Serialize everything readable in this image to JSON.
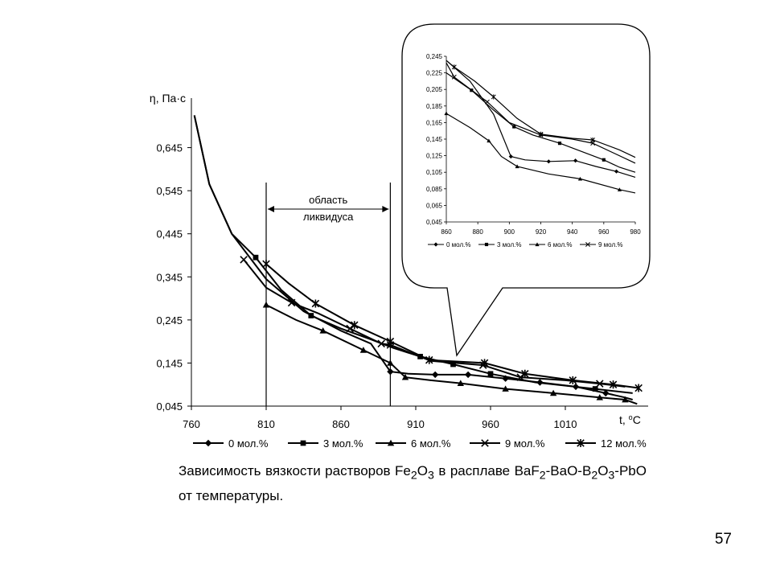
{
  "slide": {
    "page_number": "57"
  },
  "caption": {
    "t1": "Зависимость вязкости растворов Fe",
    "s1": "2",
    "t2": "O",
    "s2": "3",
    "t3": " в расплаве BaF",
    "s3": "2",
    "t4": "-BaO-B",
    "s4": "2",
    "t5": "O",
    "s5": "3",
    "t6": "-PbO от температуры."
  },
  "chart_data": [
    {
      "type": "line",
      "ylabel": "η, Па·с",
      "xlabel_main": "t, ",
      "xlabel_sup": "o",
      "xlabel_unit": "C",
      "ylim": [
        0.045,
        0.745
      ],
      "xlim": [
        760,
        1060
      ],
      "y_ticks": [
        "0,045",
        "0,145",
        "0,245",
        "0,345",
        "0,445",
        "0,545",
        "0,645"
      ],
      "x_ticks": [
        "760",
        "810",
        "860",
        "910",
        "960",
        "1010"
      ],
      "legend_position": "bottom",
      "annotation": {
        "text_line1": "область",
        "text_line2": "ликвидуса",
        "x_from": 810,
        "x_to": 893
      },
      "series": [
        {
          "name": "0 мол.%",
          "marker": "diamond",
          "marker_x": [
            893,
            923,
            945,
            970,
            993,
            1017,
            1037
          ],
          "x": [
            762,
            772,
            787,
            810,
            835,
            860,
            880,
            893,
            905,
            923,
            945,
            970,
            993,
            1017,
            1037,
            1050,
            1055
          ],
          "y": [
            0.72,
            0.56,
            0.445,
            0.34,
            0.265,
            0.22,
            0.19,
            0.125,
            0.12,
            0.118,
            0.118,
            0.109,
            0.1,
            0.09,
            0.075,
            0.065,
            0.06
          ]
        },
        {
          "name": "3 мол.%",
          "marker": "square",
          "marker_x": [
            803,
            840,
            913,
            935,
            960,
            1030
          ],
          "x": [
            762,
            772,
            787,
            803,
            820,
            840,
            860,
            880,
            895,
            913,
            935,
            960,
            990,
            1030,
            1055
          ],
          "y": [
            0.72,
            0.56,
            0.445,
            0.39,
            0.315,
            0.255,
            0.225,
            0.2,
            0.18,
            0.16,
            0.142,
            0.12,
            0.1,
            0.085,
            0.075
          ]
        },
        {
          "name": "6 мол.%",
          "marker": "triangle",
          "marker_x": [
            810,
            848,
            875,
            893,
            903,
            940,
            970,
            1002,
            1033,
            1050
          ],
          "x": [
            810,
            830,
            848,
            875,
            893,
            903,
            920,
            940,
            970,
            1002,
            1033,
            1050,
            1058
          ],
          "y": [
            0.28,
            0.245,
            0.22,
            0.175,
            0.145,
            0.112,
            0.105,
            0.098,
            0.085,
            0.075,
            0.065,
            0.06,
            0.05
          ]
        },
        {
          "name": "9 мол.%",
          "marker": "cross",
          "marker_x": [
            795,
            827,
            866,
            887,
            893,
            955,
            980,
            1033
          ],
          "x": [
            795,
            810,
            827,
            845,
            866,
            887,
            893,
            920,
            955,
            980,
            1010,
            1033,
            1050
          ],
          "y": [
            0.385,
            0.32,
            0.285,
            0.26,
            0.225,
            0.19,
            0.187,
            0.15,
            0.14,
            0.112,
            0.105,
            0.097,
            0.09
          ]
        },
        {
          "name": "12 мол.%",
          "marker": "asterisk",
          "marker_x": [
            810,
            843,
            869,
            893,
            919,
            956,
            983,
            1015,
            1042,
            1059
          ],
          "x": [
            810,
            825,
            843,
            869,
            893,
            919,
            956,
            983,
            1015,
            1042,
            1059
          ],
          "y": [
            0.375,
            0.33,
            0.283,
            0.233,
            0.195,
            0.152,
            0.145,
            0.12,
            0.105,
            0.095,
            0.087
          ]
        }
      ]
    },
    {
      "type": "line",
      "title": "",
      "ylim": [
        0.045,
        0.245
      ],
      "xlim": [
        860,
        980
      ],
      "y_ticks": [
        "0,045",
        "0,065",
        "0,085",
        "0,105",
        "0,125",
        "0,145",
        "0,165",
        "0,185",
        "0,205",
        "0,225",
        "0,245"
      ],
      "x_ticks": [
        "860",
        "880",
        "900",
        "920",
        "940",
        "960",
        "980"
      ],
      "legend_position": "bottom",
      "series": [
        {
          "name": "0 мол.%",
          "marker": "diamond",
          "marker_x": [
            901,
            925,
            942,
            968
          ],
          "x": [
            860,
            875,
            890,
            901,
            910,
            925,
            942,
            955,
            968,
            980
          ],
          "y": [
            0.24,
            0.215,
            0.175,
            0.124,
            0.12,
            0.118,
            0.119,
            0.112,
            0.106,
            0.099
          ]
        },
        {
          "name": "3 мол.%",
          "marker": "square",
          "marker_x": [
            876,
            903,
            932,
            960
          ],
          "x": [
            860,
            876,
            890,
            903,
            915,
            932,
            946,
            960,
            970,
            980
          ],
          "y": [
            0.225,
            0.204,
            0.18,
            0.16,
            0.15,
            0.14,
            0.13,
            0.12,
            0.111,
            0.105
          ]
        },
        {
          "name": "6 мол.%",
          "marker": "triangle",
          "marker_x": [
            860,
            887,
            905,
            945,
            970
          ],
          "x": [
            860,
            875,
            887,
            895,
            905,
            925,
            945,
            970,
            980
          ],
          "y": [
            0.176,
            0.159,
            0.143,
            0.124,
            0.112,
            0.103,
            0.097,
            0.084,
            0.08
          ]
        },
        {
          "name": "9 мол.%",
          "marker": "cross",
          "marker_x": [
            865,
            886,
            920,
            953
          ],
          "x": [
            860,
            865,
            886,
            900,
            920,
            940,
            953,
            980
          ],
          "y": [
            0.237,
            0.22,
            0.19,
            0.165,
            0.15,
            0.145,
            0.14,
            0.116
          ]
        },
        {
          "name": "12 мол.%",
          "marker": "asterisk",
          "marker_x": [
            865,
            890,
            920,
            953
          ],
          "x": [
            860,
            865,
            878,
            890,
            905,
            920,
            940,
            953,
            970,
            980
          ],
          "y": [
            0.24,
            0.232,
            0.215,
            0.196,
            0.17,
            0.151,
            0.146,
            0.144,
            0.132,
            0.123
          ]
        }
      ]
    }
  ]
}
